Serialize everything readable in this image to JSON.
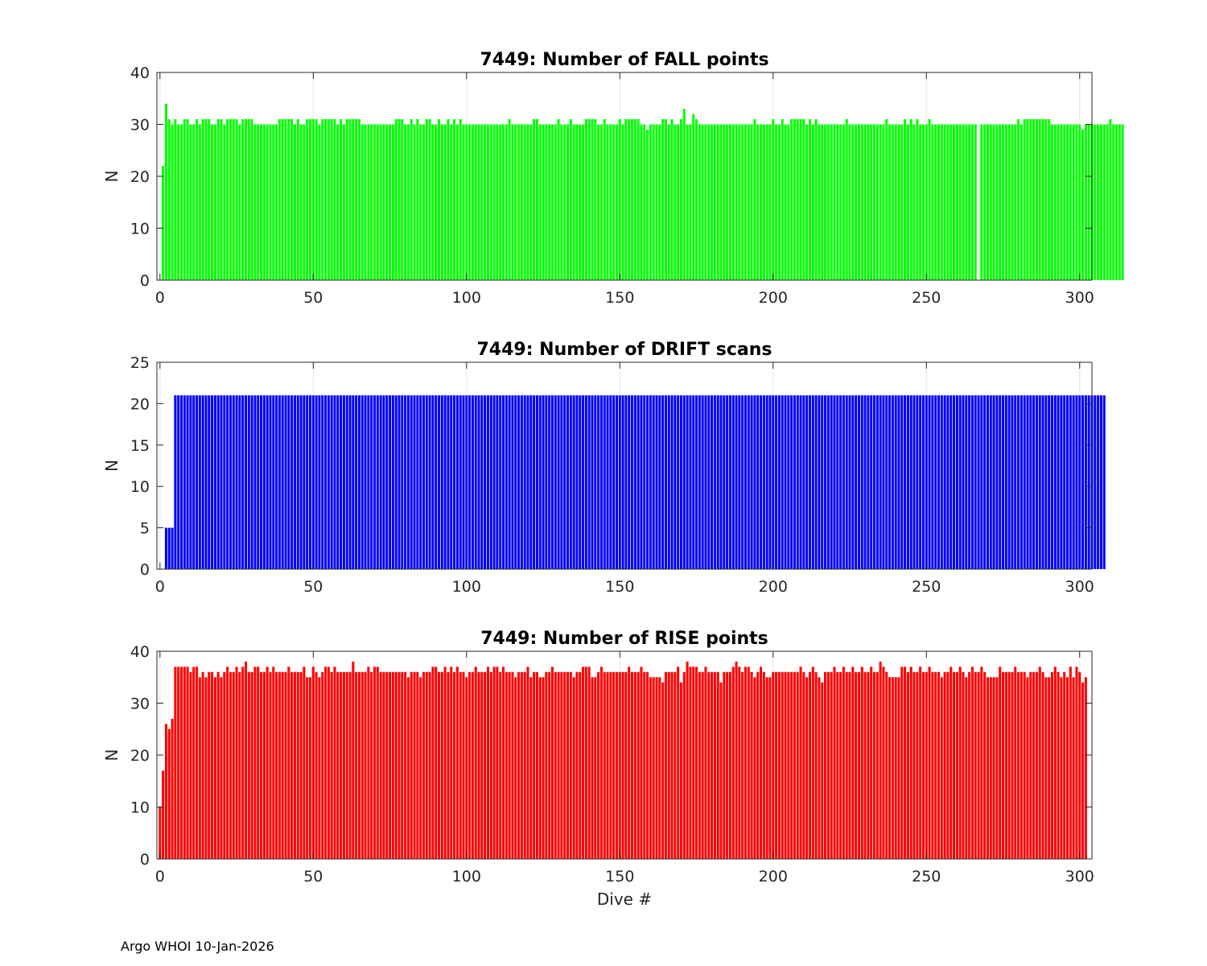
{
  "footer": "Argo WHOI 10-Jan-2026",
  "chart_data": [
    {
      "type": "bar",
      "title": "7449: Number of FALL points",
      "xlabel": "",
      "ylabel": "N",
      "color": "#00ff00",
      "xlim": [
        -1,
        304
      ],
      "ylim": [
        0,
        40
      ],
      "xticks": [
        0,
        50,
        100,
        150,
        200,
        250,
        300
      ],
      "yticks": [
        0,
        10,
        20,
        30,
        40
      ],
      "x_start": 1,
      "values": [
        22,
        34,
        31,
        30,
        31,
        30,
        30,
        31,
        31,
        30,
        30,
        31,
        30,
        31,
        31,
        31,
        30,
        30,
        31,
        31,
        30,
        31,
        31,
        31,
        31,
        30,
        31,
        31,
        31,
        31,
        30,
        30,
        30,
        30,
        30,
        30,
        30,
        30,
        31,
        31,
        31,
        31,
        31,
        30,
        31,
        30,
        30,
        31,
        31,
        31,
        31,
        30,
        31,
        31,
        31,
        31,
        31,
        30,
        31,
        30,
        31,
        31,
        31,
        31,
        31,
        30,
        30,
        30,
        30,
        30,
        30,
        30,
        30,
        30,
        30,
        30,
        31,
        31,
        31,
        30,
        30,
        31,
        30,
        31,
        30,
        30,
        31,
        31,
        30,
        30,
        31,
        30,
        30,
        31,
        30,
        31,
        30,
        31,
        30,
        30,
        30,
        30,
        30,
        30,
        30,
        30,
        30,
        30,
        30,
        30,
        30,
        30,
        30,
        31,
        30,
        30,
        30,
        30,
        30,
        30,
        30,
        31,
        31,
        30,
        30,
        30,
        30,
        30,
        30,
        31,
        30,
        30,
        30,
        31,
        30,
        30,
        30,
        30,
        31,
        31,
        31,
        31,
        30,
        30,
        31,
        30,
        30,
        30,
        30,
        31,
        30,
        31,
        31,
        31,
        31,
        31,
        30,
        30,
        29,
        30,
        30,
        30,
        30,
        31,
        31,
        30,
        31,
        30,
        30,
        31,
        33,
        30,
        30,
        32,
        31,
        30,
        30,
        30,
        30,
        30,
        30,
        30,
        30,
        30,
        30,
        30,
        30,
        30,
        30,
        30,
        30,
        30,
        30,
        31,
        30,
        30,
        30,
        30,
        30,
        31,
        30,
        30,
        31,
        30,
        30,
        31,
        31,
        31,
        31,
        31,
        30,
        31,
        30,
        31,
        30,
        30,
        30,
        30,
        30,
        30,
        30,
        30,
        30,
        31,
        30,
        30,
        30,
        30,
        30,
        30,
        30,
        30,
        30,
        30,
        30,
        30,
        31,
        30,
        30,
        30,
        30,
        30,
        31,
        30,
        31,
        30,
        31,
        30,
        30,
        30,
        31,
        30,
        30,
        30,
        30,
        30,
        30,
        30,
        30,
        30,
        30,
        30,
        30,
        30,
        30,
        30,
        0,
        30,
        30,
        30,
        30,
        30,
        30,
        30,
        30,
        30,
        30,
        30,
        30,
        31,
        30,
        31,
        31,
        31,
        31,
        31,
        31,
        31,
        31,
        31,
        30,
        30,
        30,
        30,
        30,
        30,
        30,
        30,
        30,
        30,
        29,
        30,
        30,
        30,
        30,
        30,
        30,
        30,
        30,
        31,
        30,
        30,
        30,
        30
      ]
    },
    {
      "type": "bar",
      "title": "7449: Number of DRIFT scans",
      "xlabel": "",
      "ylabel": "N",
      "color": "#0000ff",
      "xlim": [
        -1,
        304
      ],
      "ylim": [
        0,
        25
      ],
      "xticks": [
        0,
        50,
        100,
        150,
        200,
        250,
        300
      ],
      "yticks": [
        0,
        5,
        10,
        15,
        20,
        25
      ],
      "x_start": 1,
      "values": [
        0,
        5,
        5,
        5,
        21,
        21,
        21,
        21,
        21,
        21,
        21,
        21,
        21,
        21,
        21,
        21,
        21,
        21,
        21,
        21,
        21,
        21,
        21,
        21,
        21,
        21,
        21,
        21,
        21,
        21,
        21,
        21,
        21,
        21,
        21,
        21,
        21,
        21,
        21,
        21,
        21,
        21,
        21,
        21,
        21,
        21,
        21,
        21,
        21,
        21,
        21,
        21,
        21,
        21,
        21,
        21,
        21,
        21,
        21,
        21,
        21,
        21,
        21,
        21,
        21,
        21,
        21,
        21,
        21,
        21,
        21,
        21,
        21,
        21,
        21,
        21,
        21,
        21,
        21,
        21,
        21,
        21,
        21,
        21,
        21,
        21,
        21,
        21,
        21,
        21,
        21,
        21,
        21,
        21,
        21,
        21,
        21,
        21,
        21,
        21,
        21,
        21,
        21,
        21,
        21,
        21,
        21,
        21,
        21,
        21,
        21,
        21,
        21,
        21,
        21,
        21,
        21,
        21,
        21,
        21,
        21,
        21,
        21,
        21,
        21,
        21,
        21,
        21,
        21,
        21,
        21,
        21,
        21,
        21,
        21,
        21,
        21,
        21,
        21,
        21,
        21,
        21,
        21,
        21,
        21,
        21,
        21,
        21,
        21,
        21,
        21,
        21,
        21,
        21,
        21,
        21,
        21,
        21,
        21,
        21,
        21,
        21,
        21,
        21,
        21,
        21,
        21,
        21,
        21,
        21,
        21,
        21,
        21,
        21,
        21,
        21,
        21,
        21,
        21,
        21,
        21,
        21,
        21,
        21,
        21,
        21,
        21,
        21,
        21,
        21,
        21,
        21,
        21,
        21,
        21,
        21,
        21,
        21,
        21,
        21,
        21,
        21,
        21,
        21,
        21,
        21,
        21,
        21,
        21,
        21,
        21,
        21,
        21,
        21,
        21,
        21,
        21,
        21,
        21,
        21,
        21,
        21,
        21,
        21,
        21,
        21,
        21,
        21,
        21,
        21,
        21,
        21,
        21,
        21,
        21,
        21,
        21,
        21,
        21,
        21,
        21,
        21,
        21,
        21,
        21,
        21,
        21,
        21,
        21,
        21,
        21,
        21,
        21,
        21,
        21,
        21,
        21,
        21,
        21,
        21,
        21,
        21,
        21,
        21,
        21,
        21,
        21,
        21,
        21,
        21,
        21,
        21,
        21,
        21,
        21,
        21,
        21,
        21,
        21,
        21,
        21,
        21,
        21,
        21,
        21,
        21,
        21,
        21,
        21,
        21,
        21,
        21,
        21,
        21,
        21,
        21,
        21,
        21,
        21,
        21,
        21,
        21,
        21,
        21,
        21,
        21,
        21,
        21
      ]
    },
    {
      "type": "bar",
      "title": "7449: Number of RISE points",
      "xlabel": "Dive #",
      "ylabel": "N",
      "color": "#ff0000",
      "xlim": [
        -1,
        304
      ],
      "ylim": [
        0,
        40
      ],
      "xticks": [
        0,
        50,
        100,
        150,
        200,
        250,
        300
      ],
      "yticks": [
        0,
        10,
        20,
        30,
        40
      ],
      "x_start": 0,
      "values": [
        10,
        17,
        26,
        25,
        27,
        37,
        37,
        37,
        37,
        37,
        36,
        37,
        37,
        35,
        36,
        35,
        36,
        36,
        35,
        36,
        35,
        36,
        37,
        36,
        36,
        37,
        36,
        37,
        38,
        36,
        36,
        37,
        37,
        36,
        36,
        37,
        36,
        37,
        36,
        36,
        36,
        36,
        37,
        36,
        36,
        36,
        36,
        37,
        35,
        35,
        37,
        36,
        35,
        36,
        37,
        37,
        36,
        37,
        36,
        36,
        36,
        36,
        36,
        38,
        36,
        36,
        36,
        36,
        37,
        36,
        37,
        37,
        36,
        36,
        36,
        36,
        36,
        36,
        36,
        36,
        36,
        35,
        36,
        36,
        36,
        35,
        36,
        36,
        36,
        37,
        37,
        36,
        36,
        37,
        36,
        37,
        36,
        37,
        36,
        36,
        35,
        36,
        36,
        37,
        36,
        36,
        36,
        37,
        36,
        37,
        37,
        36,
        37,
        36,
        36,
        36,
        35,
        36,
        36,
        36,
        37,
        35,
        36,
        36,
        35,
        35,
        36,
        36,
        37,
        36,
        36,
        36,
        36,
        36,
        36,
        35,
        36,
        36,
        37,
        37,
        37,
        35,
        35,
        36,
        37,
        36,
        36,
        36,
        36,
        36,
        36,
        36,
        36,
        37,
        36,
        36,
        36,
        37,
        36,
        36,
        35,
        35,
        35,
        35,
        34,
        36,
        36,
        36,
        36,
        37,
        34,
        36,
        38,
        37,
        37,
        37,
        36,
        36,
        37,
        36,
        36,
        36,
        36,
        34,
        36,
        36,
        36,
        37,
        38,
        37,
        36,
        37,
        37,
        36,
        35,
        36,
        37,
        36,
        35,
        35,
        36,
        36,
        36,
        36,
        36,
        36,
        36,
        36,
        36,
        37,
        36,
        35,
        36,
        37,
        36,
        35,
        34,
        36,
        36,
        36,
        37,
        36,
        36,
        37,
        36,
        36,
        37,
        36,
        36,
        37,
        36,
        36,
        37,
        36,
        36,
        38,
        37,
        36,
        35,
        35,
        35,
        35,
        37,
        37,
        36,
        37,
        36,
        36,
        37,
        36,
        36,
        37,
        36,
        36,
        36,
        35,
        36,
        36,
        37,
        36,
        36,
        37,
        36,
        35,
        36,
        37,
        36,
        36,
        37,
        36,
        35,
        35,
        35,
        35,
        37,
        36,
        36,
        36,
        36,
        37,
        36,
        36,
        36,
        35,
        36,
        36,
        36,
        37,
        36,
        35,
        35,
        36,
        37,
        36,
        35,
        36,
        35,
        37,
        35,
        37,
        36,
        34,
        35
      ]
    }
  ]
}
